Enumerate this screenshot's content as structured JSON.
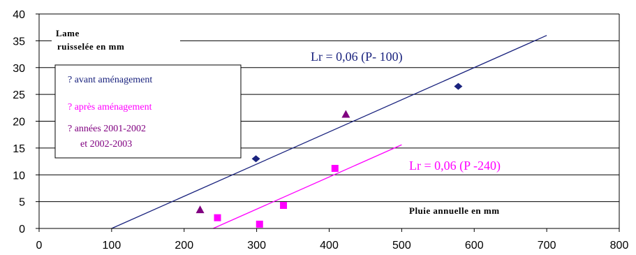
{
  "chart_data": {
    "type": "scatter",
    "xlim": [
      0,
      800
    ],
    "ylim": [
      0,
      40
    ],
    "x_ticks": [
      0,
      100,
      200,
      300,
      400,
      500,
      600,
      700,
      800
    ],
    "y_ticks": [
      0,
      5,
      10,
      15,
      20,
      25,
      30,
      35,
      40
    ],
    "grid": "horizontal",
    "ylabel": [
      "Lame",
      "ruisselée en mm"
    ],
    "xlabel": "Pluie annuelle en mm",
    "legend_position": "top-left",
    "series": [
      {
        "name": "? avant aménagement",
        "color": "#1a237e",
        "marker": "diamond",
        "points": [
          [
            299,
            13
          ],
          [
            578,
            26.5
          ]
        ]
      },
      {
        "name": "? après aménagement",
        "color": "#ff00ff",
        "marker": "square",
        "points": [
          [
            246,
            2
          ],
          [
            304,
            0.8
          ],
          [
            337,
            4.3
          ],
          [
            408,
            11.2
          ]
        ]
      },
      {
        "name_lines": [
          "? années 2001-2002",
          "et 2002-2003"
        ],
        "color": "#800080",
        "marker": "triangle",
        "points": [
          [
            222,
            3.5
          ],
          [
            423,
            21.3
          ]
        ]
      }
    ],
    "trendlines": [
      {
        "label": "Lr = 0,06 (P- 100)",
        "color": "#1a237e",
        "x": [
          100,
          700
        ],
        "y": [
          0,
          36
        ]
      },
      {
        "label": "Lr = 0,06 (P -240)",
        "color": "#ff00ff",
        "x": [
          240,
          500
        ],
        "y": [
          0,
          15.6
        ]
      }
    ]
  }
}
